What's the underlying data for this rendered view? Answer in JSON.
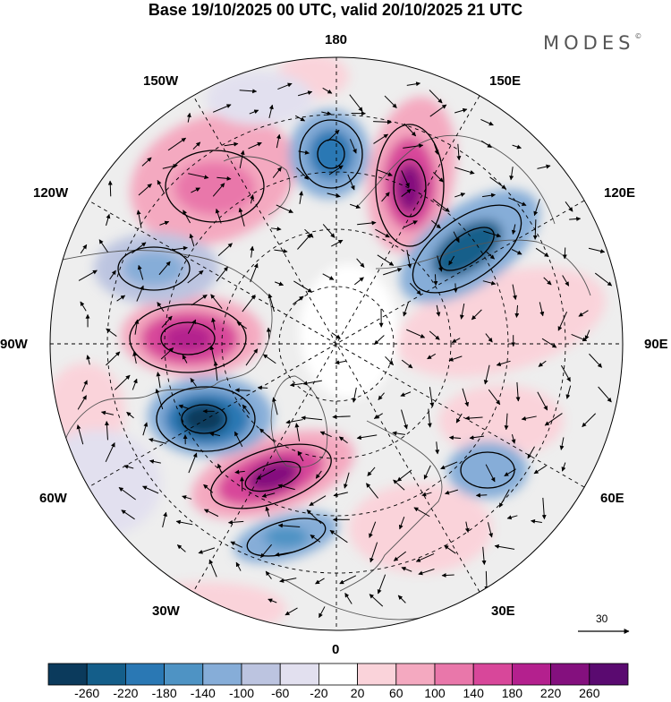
{
  "header": {
    "title": "Base 19/10/2025 00 UTC, valid 20/10/2025 21 UTC",
    "brand": "MODES",
    "brand_mark": "©"
  },
  "map": {
    "projection": "north-polar-stereographic",
    "longitude_labels": {
      "top": "180",
      "bottom": "0",
      "left": "90W",
      "right": "90E",
      "upper_left_1": "150W",
      "upper_left_2": "120W",
      "lower_left_1": "60W",
      "lower_left_2": "30W",
      "upper_right_1": "150E",
      "upper_right_2": "120E",
      "lower_right_1": "60E",
      "lower_right_2": "30E"
    },
    "vector_reference": {
      "label": "30"
    },
    "colors": {
      "ocean_background": "#eeeeee",
      "land_outline": "#555555"
    }
  },
  "colorbar": {
    "ticks": [
      "-260",
      "-220",
      "-180",
      "-140",
      "-100",
      "-60",
      "-20",
      "20",
      "60",
      "100",
      "140",
      "180",
      "220",
      "260"
    ],
    "colors": [
      "#0b3a5c",
      "#145e8a",
      "#2a78b4",
      "#4e93c4",
      "#86add8",
      "#bcc4e0",
      "#e2e0ef",
      "#ffffff",
      "#fad3da",
      "#f4a9c0",
      "#e977aa",
      "#d8479a",
      "#b4208e",
      "#84107e",
      "#5a0a70"
    ]
  }
}
